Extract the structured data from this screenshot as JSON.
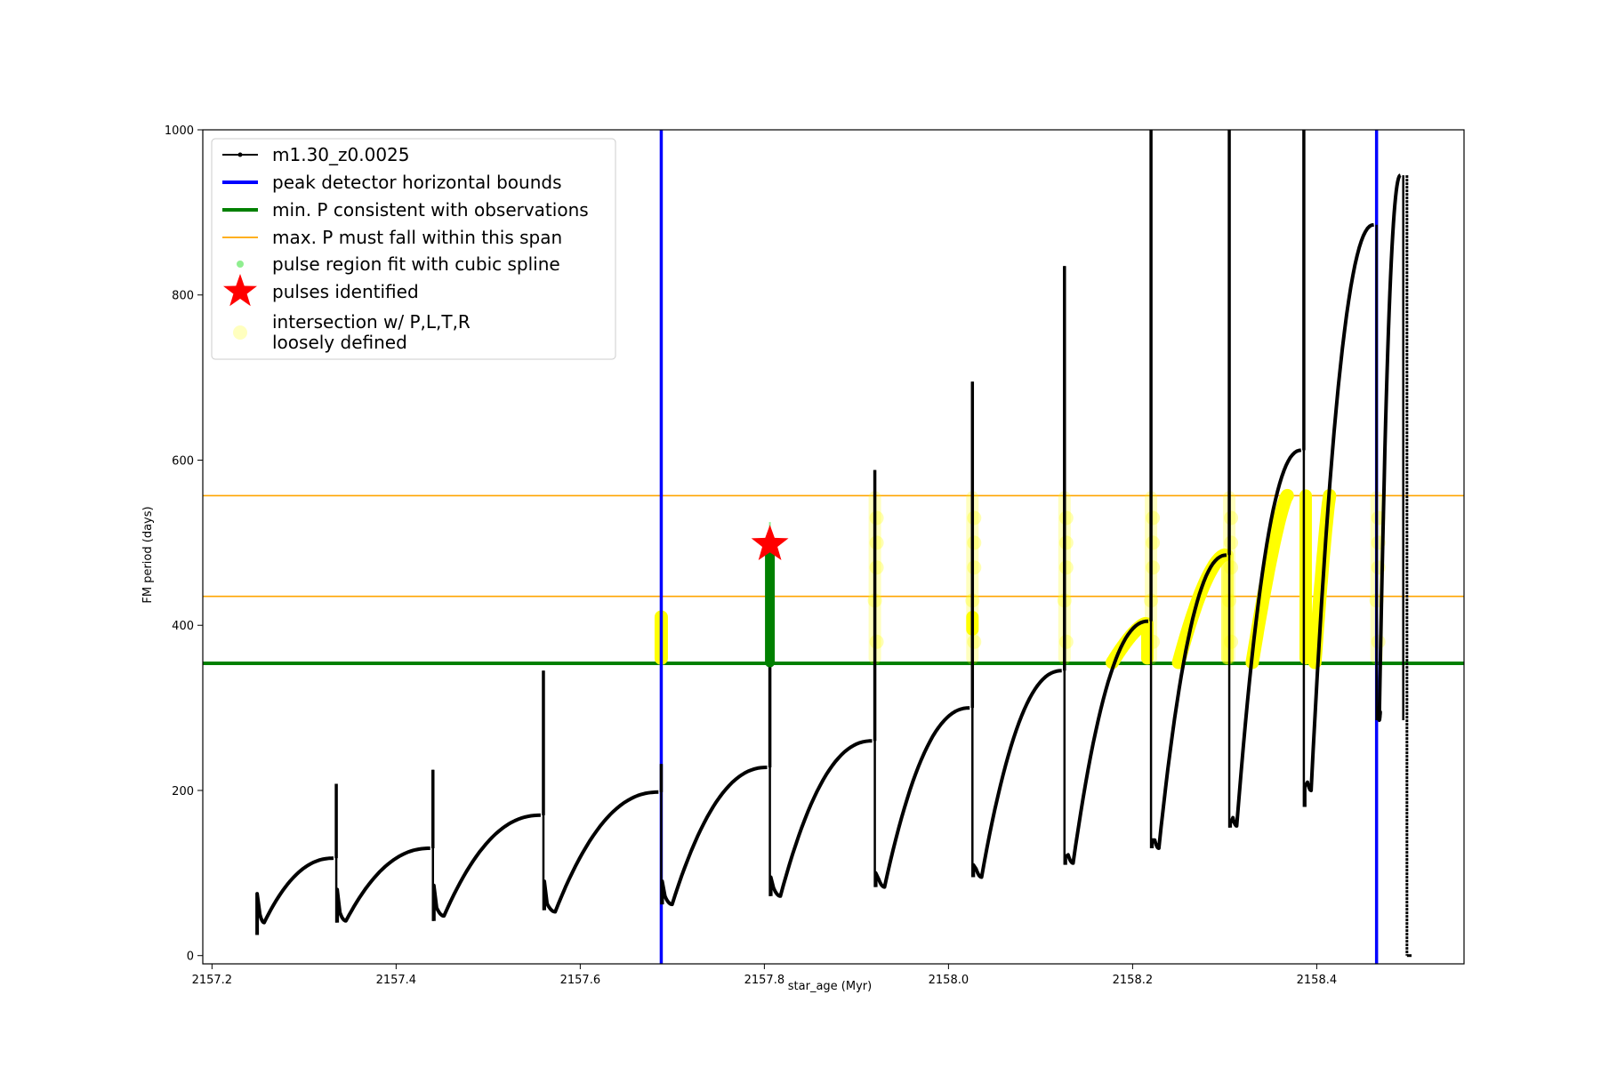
{
  "chart_data": {
    "type": "line",
    "xlabel": "star_age (Myr)",
    "ylabel": "FM period (days)",
    "xlim": [
      2157.19,
      2158.56
    ],
    "ylim": [
      -10,
      1000
    ],
    "xticks": [
      2157.2,
      2157.4,
      2157.6,
      2157.8,
      2158.0,
      2158.2,
      2158.4
    ],
    "xtick_labels": [
      "2157.2",
      "2157.4",
      "2157.6",
      "2157.8",
      "2158.0",
      "2158.2",
      "2158.4"
    ],
    "yticks": [
      0,
      200,
      400,
      600,
      800,
      1000
    ],
    "ytick_labels": [
      "0",
      "200",
      "400",
      "600",
      "800",
      "1000"
    ],
    "grid": false,
    "legend_position": "top-left",
    "colors": {
      "track": "#000000",
      "bounds": "#0000ff",
      "min_p": "#008000",
      "max_p": "#ffa500",
      "spline": "#90ee90",
      "pulse": "#ff0000",
      "intersection": "#ffff00"
    },
    "legend": [
      {
        "label": "m1.30_z0.0025",
        "style": "track"
      },
      {
        "label": "peak detector horizontal bounds",
        "style": "bounds"
      },
      {
        "label": "min. P consistent with observations",
        "style": "min_p"
      },
      {
        "label": "max. P must fall within this span",
        "style": "max_p"
      },
      {
        "label": "pulse region fit with cubic spline",
        "style": "spline"
      },
      {
        "label": "pulses identified",
        "style": "pulse"
      },
      {
        "label": "intersection w/ P,L,T,R",
        "label2": "loosely defined",
        "style": "intersection"
      }
    ],
    "vertical_bounds": [
      2157.688,
      2158.465
    ],
    "min_p_line": 354,
    "max_p_span": [
      435,
      557
    ],
    "pulses_identified": [
      {
        "x": 2157.806,
        "y": 498
      }
    ],
    "spline_region": {
      "x": 2157.806,
      "y_range": [
        355,
        498
      ]
    },
    "series": [
      {
        "name": "m1.30_z0.0025",
        "cycles": [
          {
            "start": 2157.248,
            "start_min": 25,
            "start_max": 75,
            "end": 2157.335,
            "rise_from": 40,
            "rise_to": 118,
            "spike": 208
          },
          {
            "start": 2157.335,
            "start_min": 40,
            "start_max": 80,
            "end": 2157.44,
            "rise_from": 42,
            "rise_to": 130,
            "spike": 225
          },
          {
            "start": 2157.44,
            "start_min": 42,
            "start_max": 85,
            "end": 2157.56,
            "rise_from": 48,
            "rise_to": 170,
            "spike": 345
          },
          {
            "start": 2157.56,
            "start_min": 55,
            "start_max": 90,
            "end": 2157.688,
            "rise_from": 53,
            "rise_to": 198,
            "spike": 232
          },
          {
            "start": 2157.688,
            "start_min": 62,
            "start_max": 90,
            "end": 2157.806,
            "rise_from": 62,
            "rise_to": 228,
            "spike": 498
          },
          {
            "start": 2157.806,
            "start_min": 72,
            "start_max": 95,
            "end": 2157.92,
            "rise_from": 72,
            "rise_to": 260,
            "spike": 588
          },
          {
            "start": 2157.92,
            "start_min": 83,
            "start_max": 100,
            "end": 2158.026,
            "rise_from": 83,
            "rise_to": 300,
            "spike": 695
          },
          {
            "start": 2158.026,
            "start_min": 95,
            "start_max": 110,
            "end": 2158.126,
            "rise_from": 95,
            "rise_to": 345,
            "spike": 835
          },
          {
            "start": 2158.126,
            "start_min": 110,
            "start_max": 120,
            "end": 2158.22,
            "rise_from": 112,
            "rise_to": 405,
            "spike": 1000
          },
          {
            "start": 2158.22,
            "start_min": 130,
            "start_max": 140,
            "end": 2158.305,
            "rise_from": 130,
            "rise_to": 485,
            "spike": 1000
          },
          {
            "start": 2158.305,
            "start_min": 155,
            "start_max": 160,
            "end": 2158.386,
            "rise_from": 157,
            "rise_to": 612,
            "spike": 1000
          },
          {
            "start": 2158.386,
            "start_min": 180,
            "start_max": 205,
            "end": 2158.465,
            "rise_from": 200,
            "rise_to": 885,
            "spike": 885
          },
          {
            "start": 2158.465,
            "start_min": 285,
            "start_max": 300,
            "end": 2158.494,
            "rise_from": 285,
            "rise_to": 945,
            "spike": 945
          }
        ],
        "final_drop": {
          "x": 2158.498,
          "y_end": 0,
          "tail_x": 2158.503
        }
      }
    ]
  }
}
